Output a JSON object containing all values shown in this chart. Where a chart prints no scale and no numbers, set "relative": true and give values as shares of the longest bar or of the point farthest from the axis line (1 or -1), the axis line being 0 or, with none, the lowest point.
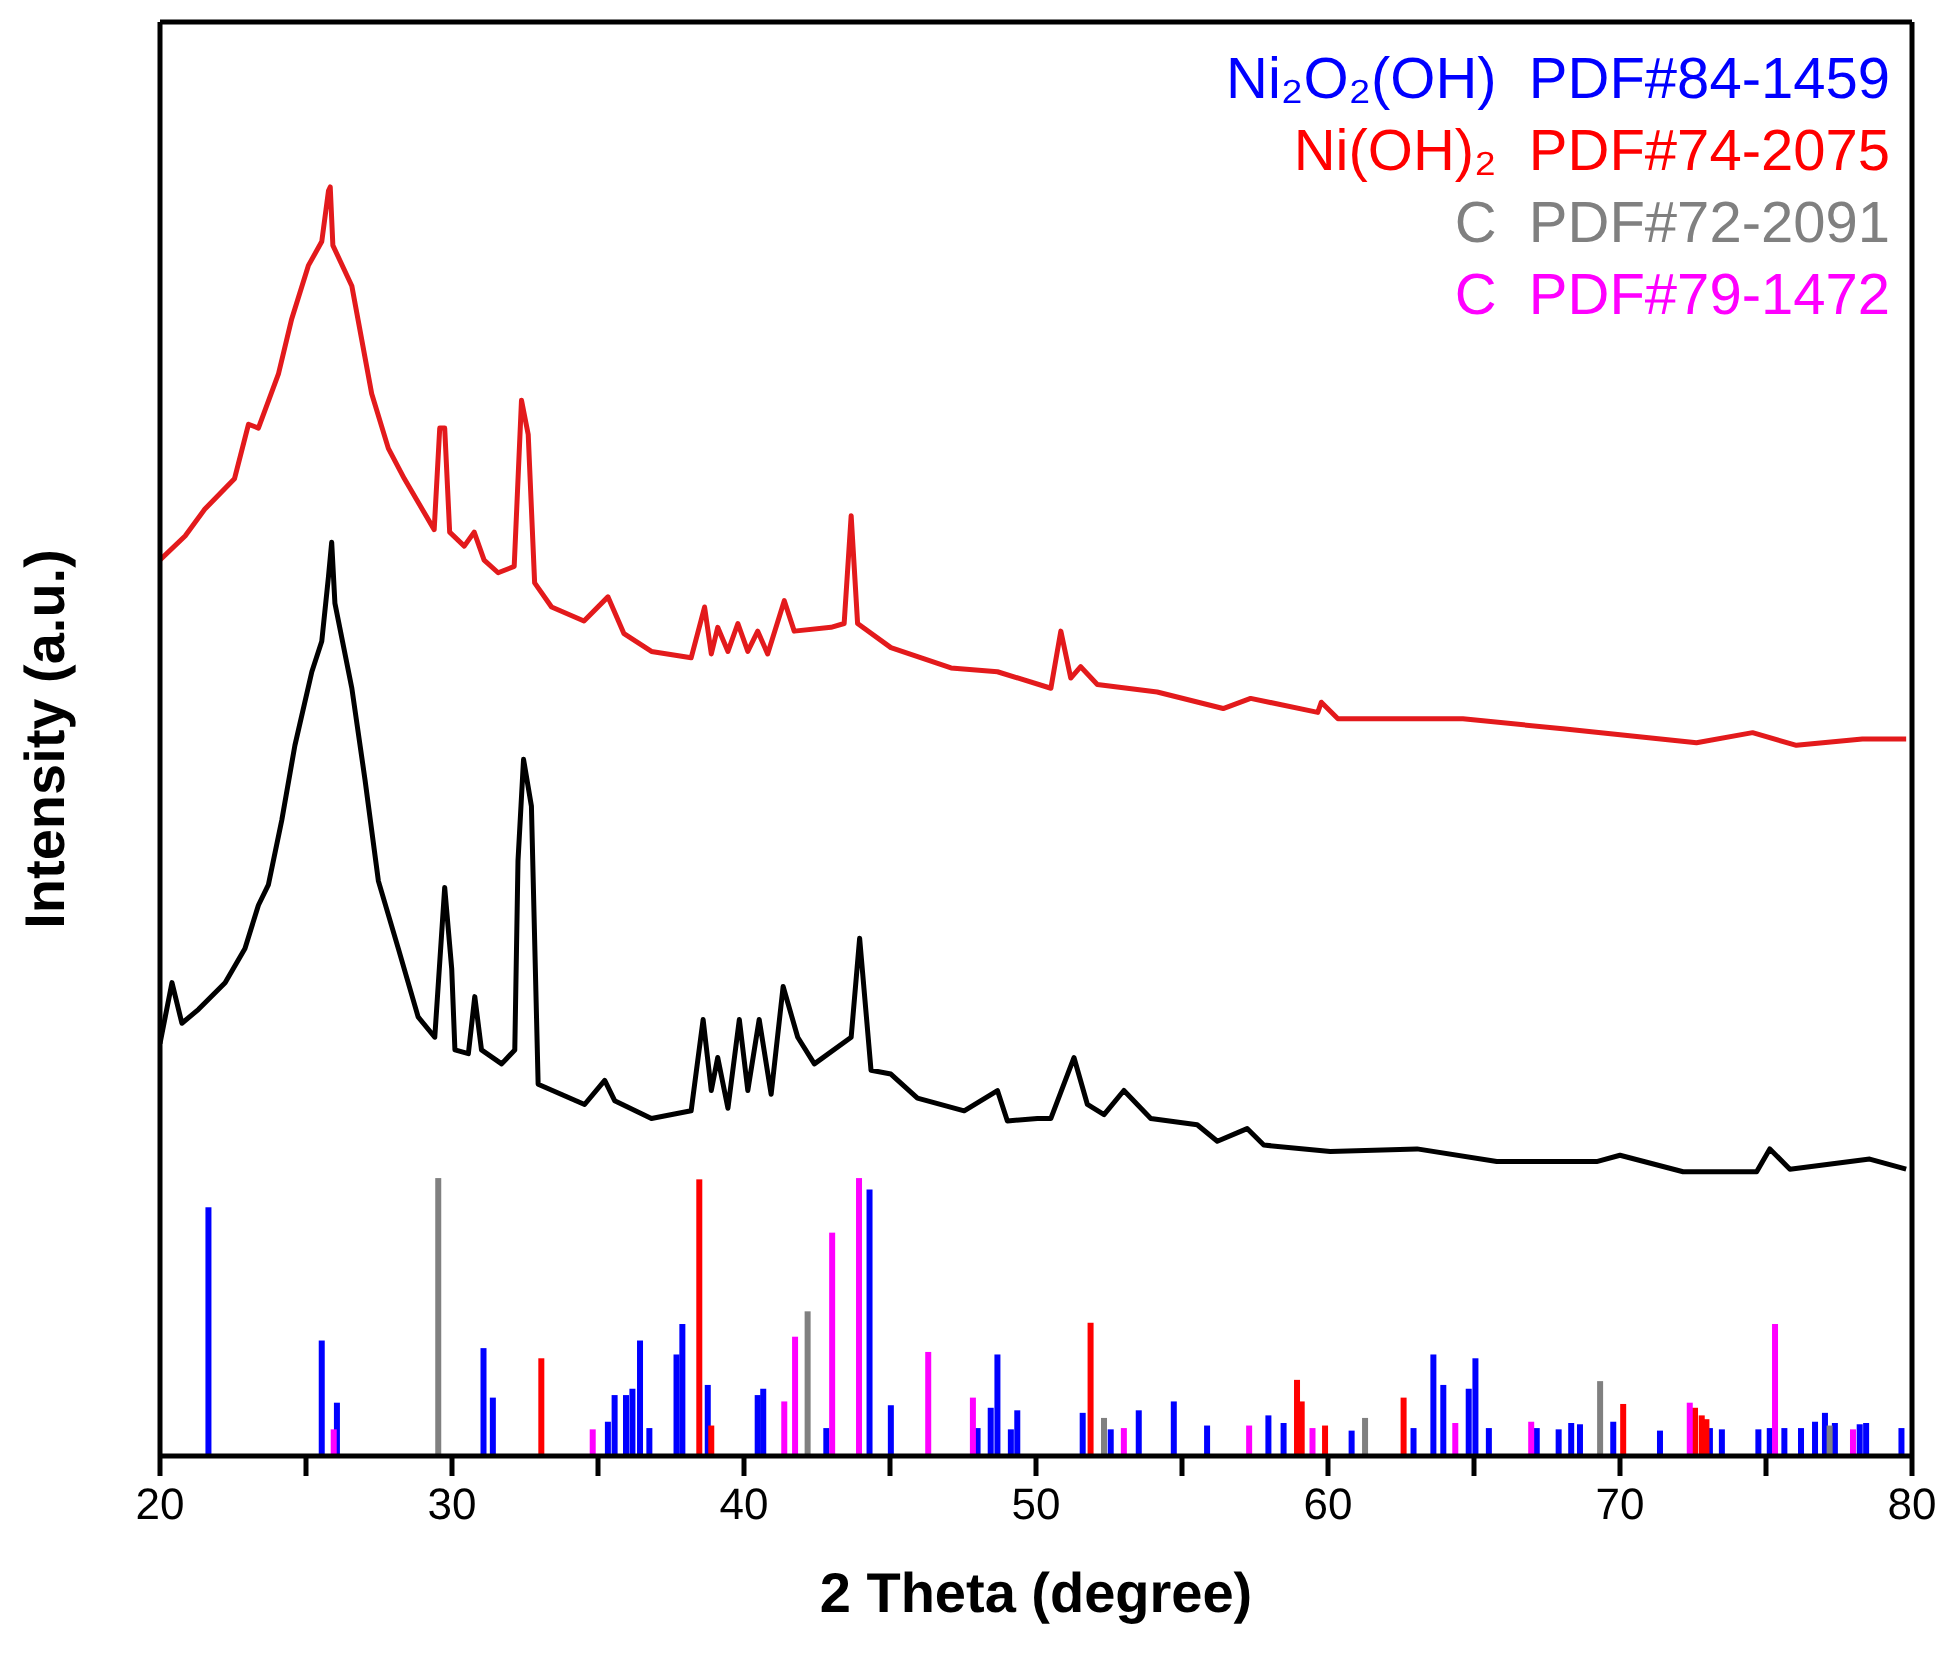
{
  "chart_data": {
    "type": "line",
    "xlabel": "2 Theta (degree)",
    "ylabel": "Intensity (a.u.)",
    "relative": true,
    "legend": "top right",
    "xlim": [
      20,
      80
    ],
    "xticks": [
      20,
      {
        "value": 25,
        "label": null
      },
      30,
      {
        "value": 35,
        "label": null
      },
      40,
      {
        "value": 45,
        "label": null
      },
      50,
      {
        "value": 55,
        "label": null
      },
      60,
      {
        "value": 65,
        "label": null
      },
      70,
      {
        "value": 75,
        "label": null
      },
      80
    ],
    "series": [
      {
        "color": "#e31a1c",
        "x": [
          20.0,
          20.86,
          21.53,
          22.55,
          23.03,
          23.37,
          24.06,
          24.51,
          25.08,
          25.54,
          25.77,
          25.83,
          25.92,
          26.57,
          27.25,
          27.82,
          28.37,
          29.39,
          29.58,
          29.75,
          29.92,
          30.42,
          30.76,
          31.1,
          31.58,
          32.13,
          32.38,
          32.61,
          32.83,
          33.41,
          34.52,
          35.34,
          35.89,
          36.83,
          38.19,
          38.65,
          38.88,
          39.1,
          39.45,
          39.79,
          40.13,
          40.47,
          40.81,
          41.38,
          41.72,
          42.98,
          43.43,
          43.67,
          43.89,
          45.03,
          47.09,
          48.68,
          50.51,
          50.85,
          51.19,
          51.53,
          52.1,
          54.15,
          56.41,
          57.35,
          59.65,
          59.77,
          60.34,
          64.62,
          68.04,
          72.62,
          74.54,
          76.04,
          78.3,
          79.8
        ],
        "values": [
          0.706,
          0.725,
          0.746,
          0.77,
          0.813,
          0.81,
          0.853,
          0.896,
          0.938,
          0.957,
          0.997,
          1.0,
          0.954,
          0.922,
          0.837,
          0.794,
          0.77,
          0.73,
          0.81,
          0.81,
          0.728,
          0.717,
          0.728,
          0.706,
          0.696,
          0.701,
          0.832,
          0.805,
          0.688,
          0.669,
          0.658,
          0.677,
          0.648,
          0.634,
          0.629,
          0.669,
          0.632,
          0.653,
          0.634,
          0.656,
          0.634,
          0.65,
          0.632,
          0.674,
          0.65,
          0.653,
          0.656,
          0.741,
          0.656,
          0.637,
          0.621,
          0.618,
          0.605,
          0.65,
          0.613,
          0.622,
          0.608,
          0.602,
          0.589,
          0.597,
          0.586,
          0.594,
          0.581,
          0.581,
          0.573,
          0.562,
          0.57,
          0.56,
          0.565,
          0.565
        ]
      },
      {
        "color": "#000000",
        "x": [
          20.0,
          20.41,
          20.75,
          21.32,
          22.23,
          22.91,
          23.37,
          23.71,
          24.17,
          24.62,
          25.2,
          25.54,
          25.77,
          25.88,
          25.99,
          26.57,
          27.02,
          27.48,
          28.16,
          28.84,
          29.41,
          29.75,
          29.99,
          30.1,
          30.56,
          30.78,
          31.01,
          31.7,
          32.15,
          32.26,
          32.45,
          32.72,
          32.95,
          34.54,
          35.23,
          35.57,
          36.83,
          38.19,
          38.6,
          38.88,
          39.1,
          39.45,
          39.84,
          40.13,
          40.52,
          40.93,
          41.34,
          41.84,
          42.41,
          43.67,
          43.96,
          44.35,
          45.03,
          45.94,
          47.54,
          48.68,
          49.02,
          50.05,
          50.51,
          51.3,
          51.76,
          52.33,
          53.01,
          53.93,
          55.52,
          56.21,
          57.23,
          57.8,
          60.08,
          63.05,
          65.78,
          69.2,
          70.0,
          72.16,
          74.68,
          75.13,
          75.82,
          78.55,
          79.8
        ],
        "values": [
          0.325,
          0.373,
          0.341,
          0.352,
          0.373,
          0.4,
          0.434,
          0.45,
          0.501,
          0.56,
          0.618,
          0.642,
          0.693,
          0.72,
          0.672,
          0.605,
          0.533,
          0.453,
          0.4,
          0.346,
          0.33,
          0.448,
          0.384,
          0.32,
          0.317,
          0.362,
          0.32,
          0.309,
          0.32,
          0.469,
          0.549,
          0.512,
          0.293,
          0.277,
          0.296,
          0.28,
          0.266,
          0.272,
          0.344,
          0.288,
          0.314,
          0.274,
          0.344,
          0.288,
          0.344,
          0.285,
          0.37,
          0.33,
          0.309,
          0.33,
          0.408,
          0.304,
          0.301,
          0.282,
          0.272,
          0.288,
          0.264,
          0.266,
          0.266,
          0.314,
          0.277,
          0.269,
          0.288,
          0.266,
          0.261,
          0.248,
          0.258,
          0.245,
          0.24,
          0.242,
          0.232,
          0.232,
          0.237,
          0.224,
          0.224,
          0.242,
          0.226,
          0.234,
          0.226
        ]
      },
      {
        "type": "bar",
        "name": "Ni₂O₂(OH)  PDF#84-1459",
        "color": "#0000ff",
        "x": [
          21.66,
          25.54,
          26.06,
          31.08,
          31.4,
          35.34,
          35.57,
          35.96,
          36.18,
          36.44,
          36.76,
          37.69,
          37.89,
          38.76,
          40.47,
          40.66,
          42.82,
          44.3,
          45.03,
          48.0,
          48.45,
          48.68,
          49.14,
          49.36,
          51.6,
          52.56,
          53.52,
          54.72,
          55.86,
          57.96,
          58.48,
          60.81,
          62.93,
          63.61,
          63.95,
          64.82,
          65.05,
          65.51,
          67.15,
          67.9,
          68.33,
          68.63,
          69.77,
          71.37,
          73.08,
          73.49,
          74.74,
          75.13,
          75.63,
          76.2,
          76.68,
          77.02,
          77.36,
          78.21,
          78.43,
          79.64
        ],
        "values": [
          0.196,
          0.091,
          0.042,
          0.085,
          0.046,
          0.027,
          0.048,
          0.048,
          0.053,
          0.091,
          0.022,
          0.08,
          0.104,
          0.056,
          0.048,
          0.053,
          0.022,
          0.21,
          0.04,
          0.022,
          0.038,
          0.08,
          0.021,
          0.036,
          0.034,
          0.021,
          0.036,
          0.043,
          0.024,
          0.032,
          0.026,
          0.02,
          0.022,
          0.08,
          0.056,
          0.053,
          0.077,
          0.022,
          0.022,
          0.021,
          0.026,
          0.025,
          0.027,
          0.02,
          0.022,
          0.021,
          0.021,
          0.022,
          0.022,
          0.022,
          0.027,
          0.034,
          0.026,
          0.025,
          0.026,
          0.022
        ]
      },
      {
        "type": "bar",
        "name": "Ni(OH)₂  PDF#74-2075",
        "color": "#ff0000",
        "x": [
          33.06,
          38.47,
          38.88,
          51.87,
          58.94,
          59.1,
          59.9,
          62.59,
          70.11,
          72.57,
          72.8,
          72.96
        ],
        "values": [
          0.077,
          0.218,
          0.024,
          0.105,
          0.06,
          0.043,
          0.024,
          0.046,
          0.041,
          0.038,
          0.032,
          0.029
        ]
      },
      {
        "type": "bar",
        "name": "C  PDF#72-2091",
        "color": "#808080",
        "x": [
          29.53,
          42.18,
          52.33,
          61.27,
          69.32,
          77.18
        ],
        "values": [
          0.219,
          0.114,
          0.03,
          0.03,
          0.059,
          0.024
        ]
      },
      {
        "type": "bar",
        "name": "C  PDF#79-1472",
        "color": "#ff00ff",
        "x": [
          25.95,
          34.82,
          41.38,
          41.75,
          43.02,
          43.94,
          46.31,
          47.84,
          53.01,
          57.3,
          59.47,
          64.36,
          66.96,
          72.39,
          75.31,
          77.98
        ],
        "values": [
          0.021,
          0.021,
          0.043,
          0.094,
          0.176,
          0.219,
          0.082,
          0.046,
          0.022,
          0.024,
          0.022,
          0.026,
          0.027,
          0.042,
          0.104,
          0.021
        ]
      }
    ]
  }
}
